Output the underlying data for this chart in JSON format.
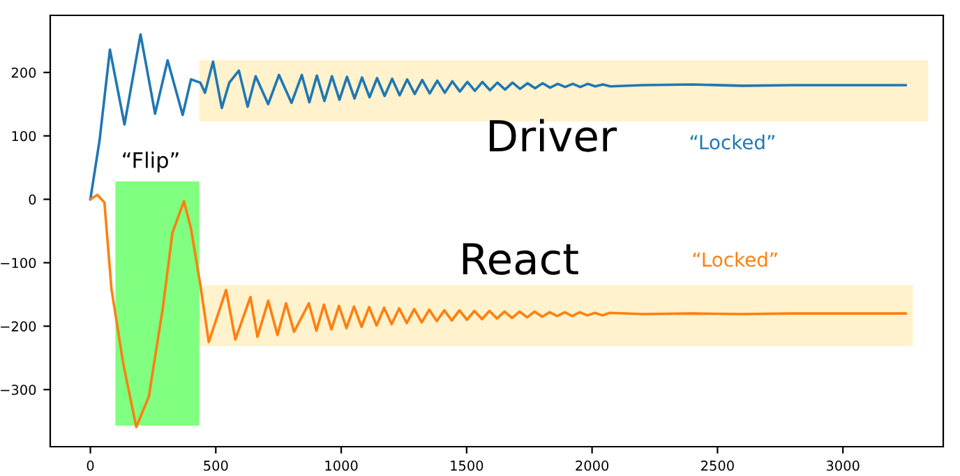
{
  "chart_data": {
    "type": "line",
    "xlim": [
      -160,
      3400
    ],
    "ylim": [
      -390,
      290
    ],
    "xticks": [
      0,
      500,
      1000,
      1500,
      2000,
      2500,
      3000
    ],
    "yticks": [
      -300,
      -200,
      -100,
      0,
      100,
      200
    ],
    "grid": false,
    "legend": false,
    "marker": "none",
    "line_style": "solid",
    "annotations": [
      "Driver",
      "“Locked”",
      "React",
      "“Locked”",
      "“Flip”"
    ],
    "series": [
      {
        "color": "#1f77b4",
        "x": [
          0,
          37,
          78,
          136,
          200,
          258,
          308,
          368,
          401,
          438,
          457,
          489,
          524,
          554,
          592,
          627,
          659,
          709,
          752,
          802,
          843,
          873,
          903,
          933,
          963,
          993,
          1023,
          1053,
          1083,
          1113,
          1143,
          1173,
          1203,
          1233,
          1263,
          1293,
          1323,
          1353,
          1383,
          1413,
          1443,
          1473,
          1503,
          1533,
          1563,
          1593,
          1623,
          1653,
          1683,
          1713,
          1743,
          1773,
          1803,
          1833,
          1863,
          1893,
          1923,
          1953,
          1983,
          2013,
          2043,
          2073,
          2200,
          2400,
          2600,
          2800,
          3000,
          3250
        ],
        "values": [
          0,
          94,
          236,
          118,
          260,
          135,
          219,
          133,
          189,
          184,
          168,
          217,
          144,
          184,
          203,
          146,
          194,
          150,
          196,
          152,
          196,
          153,
          195,
          155,
          194,
          157,
          193,
          159,
          192,
          161,
          191,
          163,
          190,
          164,
          189,
          166,
          188,
          167,
          187,
          168,
          186,
          170,
          185,
          171,
          185,
          172,
          184,
          173,
          184,
          174,
          183,
          175,
          183,
          176,
          182,
          177,
          182,
          177,
          182,
          178,
          181,
          178,
          180,
          181,
          179,
          180,
          180,
          180
        ]
      },
      {
        "color": "#ff7f0e",
        "x": [
          0,
          28,
          56,
          84,
          131,
          183,
          233,
          289,
          327,
          373,
          401,
          438,
          472,
          541,
          578,
          638,
          666,
          709,
          746,
          780,
          812,
          871,
          901,
          931,
          961,
          991,
          1021,
          1051,
          1081,
          1111,
          1141,
          1171,
          1201,
          1231,
          1261,
          1291,
          1321,
          1351,
          1381,
          1411,
          1441,
          1471,
          1501,
          1531,
          1561,
          1591,
          1621,
          1651,
          1681,
          1711,
          1741,
          1771,
          1801,
          1831,
          1861,
          1891,
          1921,
          1951,
          1981,
          2011,
          2041,
          2071,
          2200,
          2400,
          2600,
          2800,
          3000,
          3250
        ],
        "values": [
          0,
          7,
          -5,
          -141,
          -259,
          -359,
          -311,
          -171,
          -53,
          -3,
          -46,
          -134,
          -225,
          -143,
          -221,
          -154,
          -217,
          -160,
          -214,
          -164,
          -209,
          -164,
          -207,
          -166,
          -205,
          -168,
          -203,
          -169,
          -201,
          -170,
          -199,
          -171,
          -197,
          -172,
          -195,
          -173,
          -194,
          -174,
          -192,
          -175,
          -191,
          -175,
          -190,
          -176,
          -189,
          -176,
          -188,
          -177,
          -187,
          -177,
          -186,
          -177,
          -185,
          -178,
          -184,
          -178,
          -184,
          -178,
          -183,
          -179,
          -183,
          -179,
          -181,
          -180,
          -181,
          -180,
          -180,
          -180
        ]
      }
    ]
  }
}
